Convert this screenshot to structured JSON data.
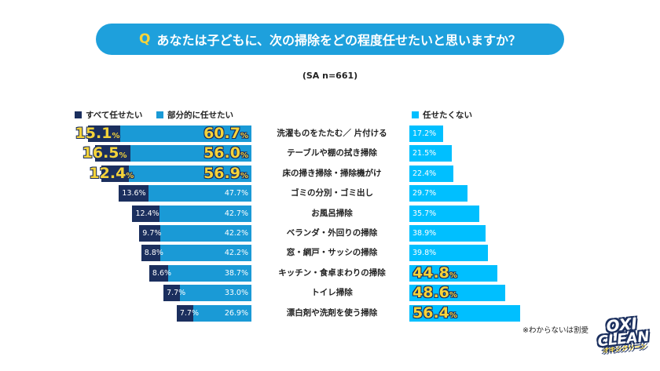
{
  "title": {
    "q": "Q",
    "text": "あなたは子どもに、次の掃除をどの程度任せたいと思いますか？"
  },
  "sample": "(SA n=661)",
  "note": "※わからないは割愛",
  "logo": {
    "line1": "OXI",
    "line2": "CLEAN",
    "line3": "オキシクリーン"
  },
  "colors": {
    "all": "#1b2f5e",
    "partial": "#1a9ad6",
    "not": "#00bfff",
    "highlight": "#f5d33a"
  },
  "chart_data": {
    "type": "bar",
    "orientation": "horizontal-stacked",
    "unit": "%",
    "legend": [
      "すべて任せたい",
      "部分的に任せたい",
      "任せたくない"
    ],
    "categories": [
      "洗濯ものをたたむ／ 片付ける",
      "テーブルや棚の拭き掃除",
      "床の掃き掃除・掃除機がけ",
      "ゴミの分別・ゴミ出し",
      "お風呂掃除",
      "ベランダ・外回りの掃除",
      "窓・網戸・サッシの掃除",
      "キッチン・食卓まわりの掃除",
      "トイレ掃除",
      "漂白剤や洗剤を使う掃除"
    ],
    "series": [
      {
        "name": "すべて任せたい",
        "values": [
          15.1,
          16.5,
          12.4,
          13.6,
          12.4,
          9.7,
          8.8,
          8.6,
          7.7,
          7.7
        ],
        "highlight": [
          0,
          1,
          2
        ]
      },
      {
        "name": "部分的に任せたい",
        "values": [
          60.7,
          56.0,
          56.9,
          47.7,
          42.7,
          42.2,
          42.2,
          38.7,
          33.0,
          26.9
        ],
        "highlight": [
          0,
          1,
          2
        ]
      },
      {
        "name": "任せたくない",
        "values": [
          17.2,
          21.5,
          22.4,
          29.7,
          35.7,
          38.9,
          39.8,
          44.8,
          48.6,
          56.4
        ],
        "highlight": [
          7,
          8,
          9
        ]
      }
    ]
  }
}
